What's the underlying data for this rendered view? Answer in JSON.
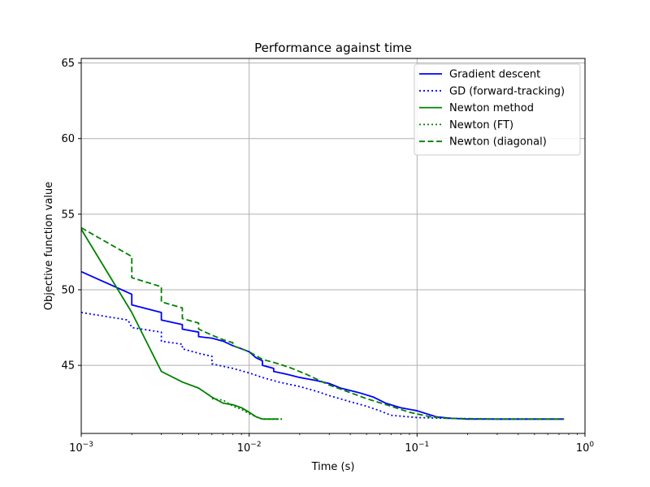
{
  "chart_data": {
    "type": "line",
    "title": "Performance against time",
    "xlabel": "Time (s)",
    "ylabel": "Objective function value",
    "xscale": "log",
    "xlim": [
      0.001,
      1.0
    ],
    "ylim": [
      40.5,
      65.3
    ],
    "grid": true,
    "legend_position": "top-right",
    "x_ticks": [
      {
        "value": 0.001,
        "base": "10",
        "exp": "−3"
      },
      {
        "value": 0.01,
        "base": "10",
        "exp": "−2"
      },
      {
        "value": 0.1,
        "base": "10",
        "exp": "−1"
      },
      {
        "value": 1.0,
        "base": "10",
        "exp": "0"
      }
    ],
    "y_ticks": [
      {
        "value": 45,
        "label": "45"
      },
      {
        "value": 50,
        "label": "50"
      },
      {
        "value": 55,
        "label": "55"
      },
      {
        "value": 60,
        "label": "60"
      },
      {
        "value": 65,
        "label": "65"
      }
    ],
    "series": [
      {
        "name": "Gradient descent",
        "color": "#0000ff",
        "style": "solid",
        "points": [
          [
            0.001,
            51.2
          ],
          [
            0.002,
            49.7
          ],
          [
            0.002,
            49.0
          ],
          [
            0.003,
            48.5
          ],
          [
            0.003,
            48.0
          ],
          [
            0.004,
            47.7
          ],
          [
            0.004,
            47.4
          ],
          [
            0.005,
            47.2
          ],
          [
            0.005,
            46.9
          ],
          [
            0.006,
            46.8
          ],
          [
            0.007,
            46.6
          ],
          [
            0.008,
            46.3
          ],
          [
            0.009,
            46.1
          ],
          [
            0.01,
            45.9
          ],
          [
            0.011,
            45.5
          ],
          [
            0.012,
            45.3
          ],
          [
            0.012,
            45.0
          ],
          [
            0.014,
            44.8
          ],
          [
            0.014,
            44.6
          ],
          [
            0.017,
            44.4
          ],
          [
            0.02,
            44.2
          ],
          [
            0.025,
            44.0
          ],
          [
            0.03,
            43.8
          ],
          [
            0.035,
            43.5
          ],
          [
            0.045,
            43.2
          ],
          [
            0.055,
            42.9
          ],
          [
            0.065,
            42.5
          ],
          [
            0.08,
            42.2
          ],
          [
            0.1,
            42.0
          ],
          [
            0.13,
            41.6
          ],
          [
            0.16,
            41.5
          ],
          [
            0.2,
            41.45
          ],
          [
            0.4,
            41.45
          ],
          [
            0.75,
            41.45
          ]
        ]
      },
      {
        "name": "GD (forward-tracking)",
        "color": "#0000ff",
        "style": "dotted",
        "points": [
          [
            0.001,
            48.5
          ],
          [
            0.0019,
            48.0
          ],
          [
            0.002,
            47.5
          ],
          [
            0.003,
            47.2
          ],
          [
            0.003,
            46.6
          ],
          [
            0.004,
            46.4
          ],
          [
            0.004,
            46.1
          ],
          [
            0.005,
            45.8
          ],
          [
            0.006,
            45.6
          ],
          [
            0.006,
            45.1
          ],
          [
            0.008,
            44.8
          ],
          [
            0.01,
            44.5
          ],
          [
            0.012,
            44.2
          ],
          [
            0.015,
            43.9
          ],
          [
            0.02,
            43.6
          ],
          [
            0.025,
            43.3
          ],
          [
            0.03,
            43.0
          ],
          [
            0.04,
            42.6
          ],
          [
            0.05,
            42.3
          ],
          [
            0.06,
            42.0
          ],
          [
            0.07,
            41.7
          ],
          [
            0.1,
            41.55
          ],
          [
            0.15,
            41.5
          ],
          [
            0.3,
            41.45
          ],
          [
            0.75,
            41.45
          ]
        ]
      },
      {
        "name": "Newton method",
        "color": "#008000",
        "style": "solid",
        "points": [
          [
            0.001,
            54.0
          ],
          [
            0.002,
            48.5
          ],
          [
            0.003,
            44.6
          ],
          [
            0.004,
            43.9
          ],
          [
            0.005,
            43.5
          ],
          [
            0.006,
            42.9
          ],
          [
            0.007,
            42.5
          ],
          [
            0.008,
            42.4
          ],
          [
            0.009,
            42.2
          ],
          [
            0.01,
            41.9
          ],
          [
            0.011,
            41.6
          ],
          [
            0.012,
            41.45
          ],
          [
            0.015,
            41.45
          ]
        ]
      },
      {
        "name": "Newton (FT)",
        "color": "#008000",
        "style": "dotted",
        "points": [
          [
            0.006,
            42.8
          ],
          [
            0.007,
            42.7
          ],
          [
            0.008,
            42.3
          ],
          [
            0.009,
            42.1
          ],
          [
            0.01,
            41.8
          ],
          [
            0.011,
            41.6
          ],
          [
            0.012,
            41.45
          ],
          [
            0.016,
            41.45
          ]
        ]
      },
      {
        "name": "Newton (diagonal)",
        "color": "#008000",
        "style": "dashed",
        "points": [
          [
            0.001,
            54.1
          ],
          [
            0.002,
            52.2
          ],
          [
            0.002,
            50.8
          ],
          [
            0.003,
            50.2
          ],
          [
            0.003,
            49.2
          ],
          [
            0.004,
            48.8
          ],
          [
            0.004,
            48.1
          ],
          [
            0.005,
            47.8
          ],
          [
            0.005,
            47.4
          ],
          [
            0.006,
            47.0
          ],
          [
            0.007,
            46.7
          ],
          [
            0.008,
            46.5
          ],
          [
            0.008,
            46.3
          ],
          [
            0.009,
            46.1
          ],
          [
            0.01,
            45.9
          ],
          [
            0.012,
            45.4
          ],
          [
            0.015,
            45.1
          ],
          [
            0.018,
            44.8
          ],
          [
            0.022,
            44.4
          ],
          [
            0.03,
            43.7
          ],
          [
            0.04,
            43.2
          ],
          [
            0.05,
            42.8
          ],
          [
            0.07,
            42.3
          ],
          [
            0.09,
            41.9
          ],
          [
            0.12,
            41.6
          ],
          [
            0.15,
            41.5
          ],
          [
            0.3,
            41.45
          ],
          [
            0.75,
            41.45
          ]
        ]
      }
    ]
  }
}
